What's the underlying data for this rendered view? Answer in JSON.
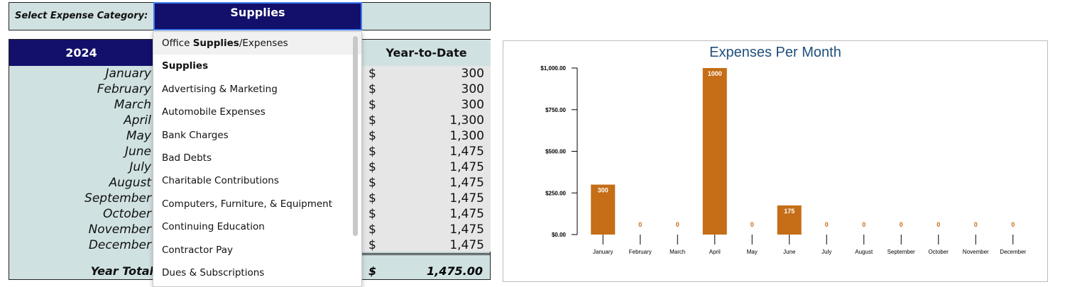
{
  "selector": {
    "label": "Select Expense Category:",
    "value": "Supplies"
  },
  "table": {
    "year_header": "2024",
    "ytd_header": "Year-to-Date",
    "currency_symbol": "$",
    "months": [
      "January",
      "February",
      "March",
      "April",
      "May",
      "June",
      "July",
      "August",
      "September",
      "October",
      "November",
      "December"
    ],
    "ytd_values": [
      "300",
      "300",
      "300",
      "1,300",
      "1,300",
      "1,475",
      "1,475",
      "1,475",
      "1,475",
      "1,475",
      "1,475",
      "1,475"
    ],
    "total_label": "Year Total",
    "total_value": "1,475.00"
  },
  "dropdown": {
    "items": [
      {
        "pre": "Office ",
        "match": "Supplies",
        "post": "/Expenses"
      },
      {
        "pre": "",
        "match": "Supplies",
        "post": ""
      },
      {
        "pre": "Advertising & Marketing",
        "match": "",
        "post": ""
      },
      {
        "pre": "Automobile Expenses",
        "match": "",
        "post": ""
      },
      {
        "pre": "Bank Charges",
        "match": "",
        "post": ""
      },
      {
        "pre": "Bad Debts",
        "match": "",
        "post": ""
      },
      {
        "pre": "Charitable Contributions",
        "match": "",
        "post": ""
      },
      {
        "pre": "Computers, Furniture, & Equipment",
        "match": "",
        "post": ""
      },
      {
        "pre": "Continuing Education",
        "match": "",
        "post": ""
      },
      {
        "pre": "Contractor Pay",
        "match": "",
        "post": ""
      },
      {
        "pre": "Dues & Subscriptions",
        "match": "",
        "post": ""
      }
    ]
  },
  "chart_data": {
    "type": "bar",
    "title": "Expenses Per Month",
    "categories": [
      "January",
      "February",
      "March",
      "April",
      "May",
      "June",
      "July",
      "August",
      "September",
      "October",
      "November",
      "December"
    ],
    "values": [
      300,
      0,
      0,
      1000,
      0,
      175,
      0,
      0,
      0,
      0,
      0,
      0
    ],
    "ylim": [
      0,
      1000
    ],
    "yticks": [
      "$0.00",
      "$250.00",
      "$500.00",
      "$750.00",
      "$1,000.00"
    ],
    "bar_color": "#c56d17",
    "xlabel": "",
    "ylabel": ""
  }
}
